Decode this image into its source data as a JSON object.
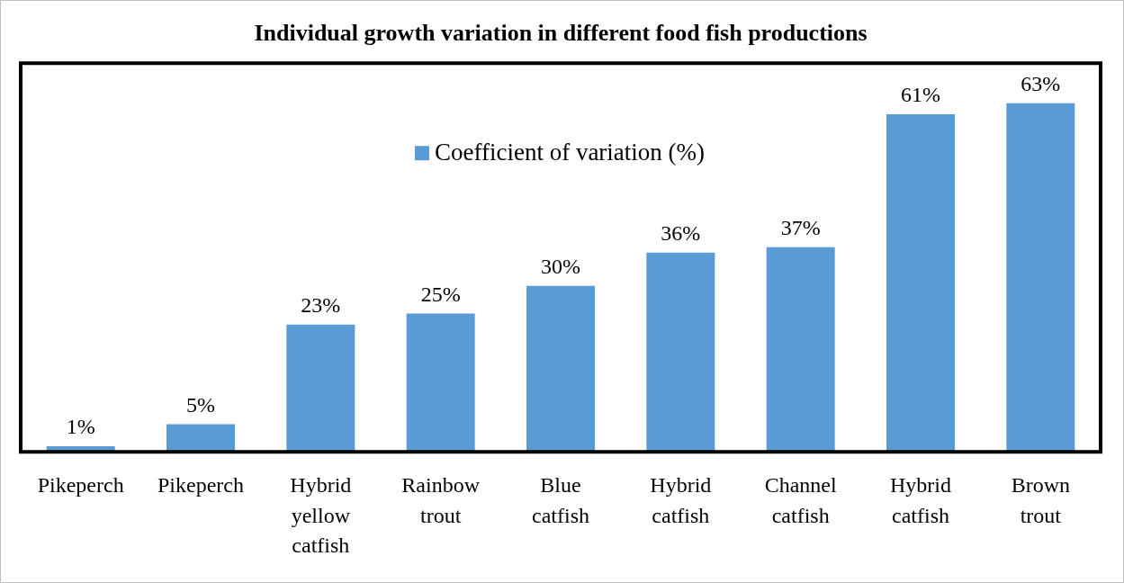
{
  "chart_data": {
    "type": "bar",
    "title": "Individual growth variation in different food fish productions",
    "categories": [
      "Pikeperch",
      "Pikeperch",
      "Hybrid yellow catfish",
      "Rainbow trout",
      "Blue catfish",
      "Hybrid catfish",
      "Channel catfish",
      "Hybrid catfish",
      "Brown trout"
    ],
    "series": [
      {
        "name": "Coefficient of variation (%)",
        "color": "#5b9bd5",
        "values": [
          1,
          5,
          23,
          25,
          30,
          36,
          37,
          61,
          63
        ],
        "value_labels": [
          "1%",
          "5%",
          "23%",
          "25%",
          "30%",
          "36%",
          "37%",
          "61%",
          "63%"
        ]
      }
    ],
    "legend": "top",
    "grid": false
  }
}
